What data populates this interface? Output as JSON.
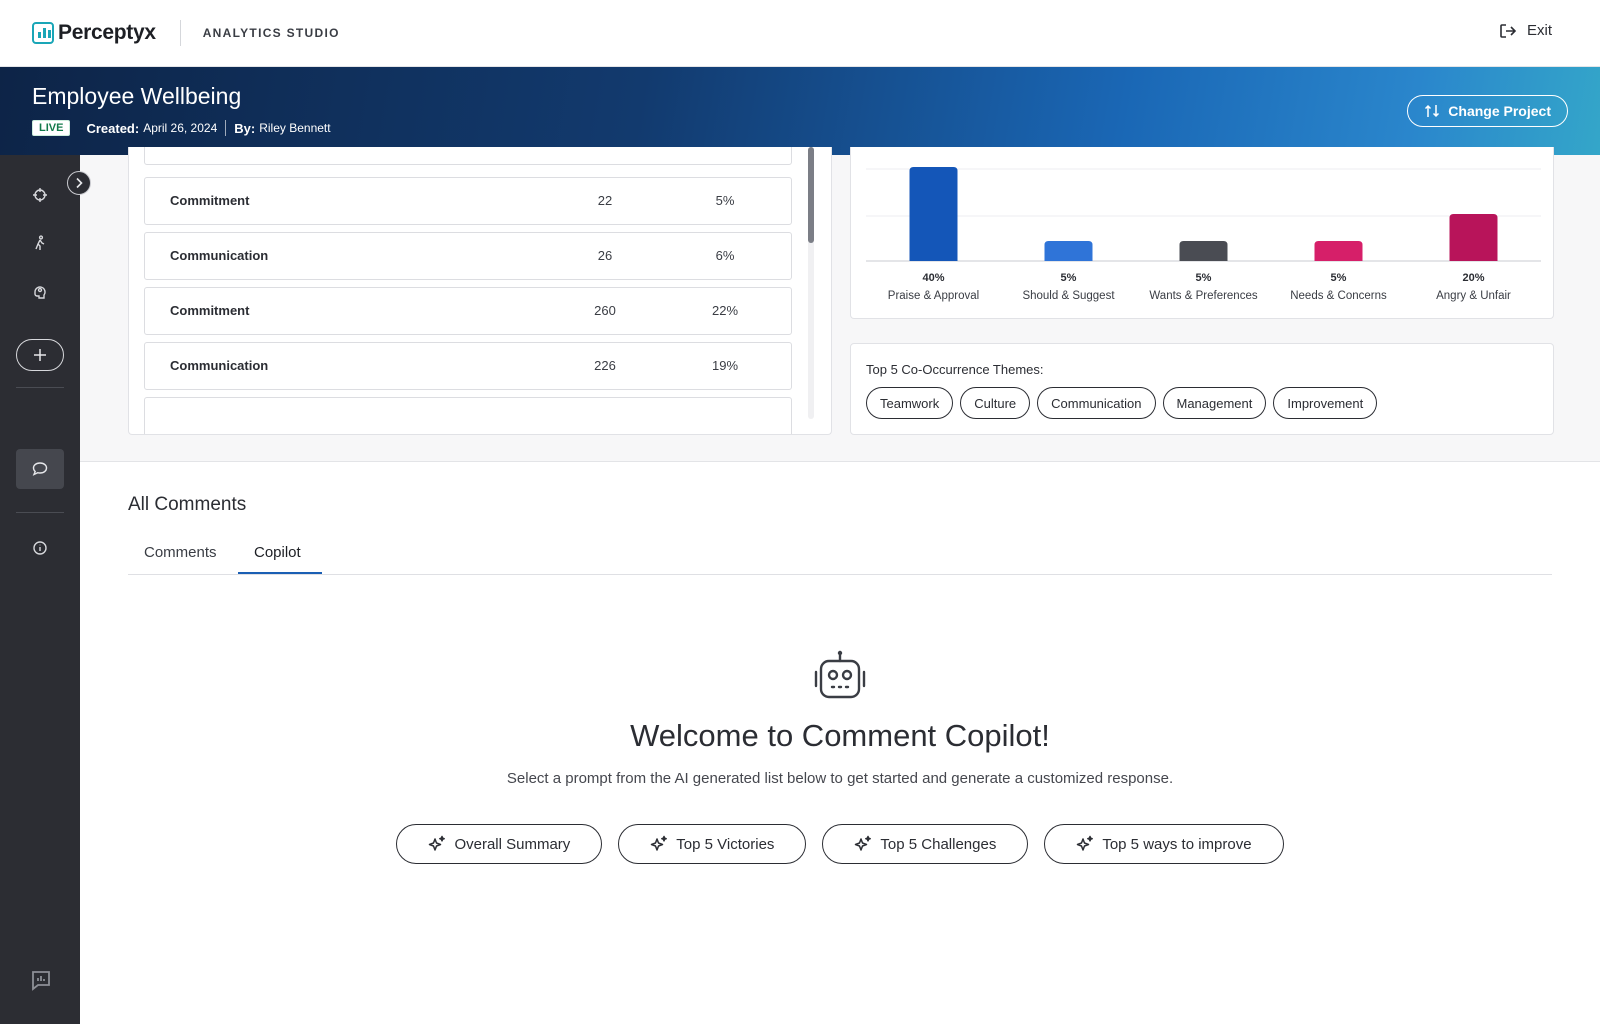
{
  "topbar": {
    "brand": "Perceptyx",
    "studio": "ANALYTICS STUDIO",
    "exit_label": "Exit"
  },
  "banner": {
    "title": "Employee Wellbeing",
    "status": "LIVE",
    "created_label": "Created:",
    "created_value": "April 26, 2024",
    "by_label": "By:",
    "by_value": "Riley Bennett",
    "change_project_label": "Change Project"
  },
  "sidebar": {
    "icons": [
      "crosshair-icon",
      "walking-icon",
      "brain-icon",
      "plus-icon",
      "comment-icon",
      "info-icon",
      "feedback-icon"
    ]
  },
  "theme_table": {
    "rows": [
      {
        "name": "Commitment",
        "count": "22",
        "pct": "5%"
      },
      {
        "name": "Communication",
        "count": "26",
        "pct": "6%"
      },
      {
        "name": "Commitment",
        "count": "260",
        "pct": "22%"
      },
      {
        "name": "Communication",
        "count": "226",
        "pct": "19%"
      }
    ]
  },
  "chart_data": {
    "type": "bar",
    "categories": [
      "Praise & Approval",
      "Should & Suggest",
      "Wants & Preferences",
      "Needs & Concerns",
      "Angry & Unfair"
    ],
    "values": [
      40,
      5,
      5,
      5,
      20
    ],
    "data_labels": [
      "40%",
      "5%",
      "5%",
      "5%",
      "20%"
    ],
    "colors": [
      "#1456b8",
      "#2f74d8",
      "#4a4c53",
      "#d61f69",
      "#b8145a"
    ],
    "ylim": [
      0,
      40
    ],
    "grid": true,
    "legend": "none"
  },
  "themes": {
    "title": "Top 5 Co-Occurrence Themes:",
    "chips": [
      "Teamwork",
      "Culture",
      "Communication",
      "Management",
      "Improvement"
    ]
  },
  "all_comments": {
    "title": "All Comments",
    "tabs": [
      "Comments",
      "Copilot"
    ],
    "active_tab": "Copilot"
  },
  "copilot": {
    "welcome": "Welcome to Comment Copilot!",
    "subtitle": "Select a prompt from the AI generated list below to get started and generate a customized response.",
    "prompts": [
      "Overall Summary",
      "Top 5 Victories",
      "Top 5 Challenges",
      "Top 5 ways to improve"
    ]
  }
}
